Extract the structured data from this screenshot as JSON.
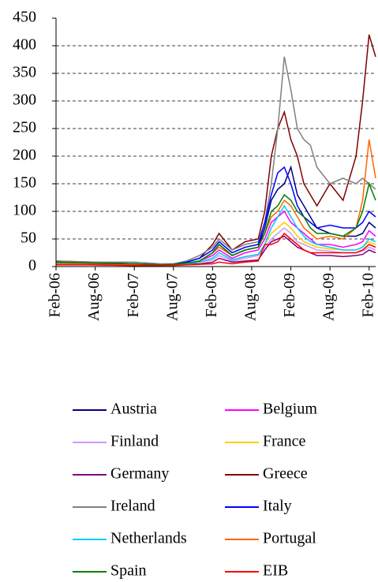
{
  "chart_data": {
    "type": "line",
    "x": [
      "2006-02",
      "2006-08",
      "2007-02",
      "2007-06",
      "2007-08",
      "2007-10",
      "2007-12",
      "2008-02",
      "2008-03",
      "2008-05",
      "2008-07",
      "2008-09",
      "2008-10",
      "2008-11",
      "2008-12",
      "2009-01",
      "2009-02",
      "2009-03",
      "2009-04",
      "2009-05",
      "2009-06",
      "2009-08",
      "2009-10",
      "2009-12",
      "2010-01",
      "2010-02",
      "2010-03"
    ],
    "xlim": [
      "2006-02",
      "2010-03"
    ],
    "xticks": [
      {
        "value": "2006-02",
        "label": "Feb-06"
      },
      {
        "value": "2006-08",
        "label": "Aug-06"
      },
      {
        "value": "2007-02",
        "label": "Feb-07"
      },
      {
        "value": "2007-08",
        "label": "Aug-07"
      },
      {
        "value": "2008-02",
        "label": "Feb-08"
      },
      {
        "value": "2008-08",
        "label": "Aug-08"
      },
      {
        "value": "2009-02",
        "label": "Feb-09"
      },
      {
        "value": "2009-08",
        "label": "Aug-09"
      },
      {
        "value": "2010-02",
        "label": "Feb-10"
      }
    ],
    "ylim": [
      0,
      450
    ],
    "yticks": [
      0,
      50,
      100,
      150,
      200,
      250,
      300,
      350,
      400,
      450
    ],
    "grid": true,
    "series": [
      {
        "name": "Austria",
        "color": "#000080",
        "values": [
          8,
          6,
          5,
          3,
          4,
          6,
          10,
          25,
          40,
          20,
          30,
          35,
          70,
          120,
          140,
          150,
          180,
          130,
          110,
          90,
          70,
          60,
          55,
          55,
          60,
          80,
          70
        ]
      },
      {
        "name": "Belgium",
        "color": "#ff00ff",
        "values": [
          6,
          5,
          4,
          3,
          4,
          6,
          10,
          20,
          30,
          15,
          25,
          30,
          50,
          80,
          90,
          100,
          80,
          70,
          60,
          50,
          40,
          40,
          35,
          40,
          45,
          65,
          55
        ]
      },
      {
        "name": "Finland",
        "color": "#cc99ff",
        "values": [
          5,
          4,
          3,
          2,
          3,
          5,
          8,
          12,
          20,
          10,
          15,
          20,
          35,
          50,
          60,
          70,
          60,
          45,
          40,
          35,
          30,
          28,
          25,
          25,
          28,
          35,
          30
        ]
      },
      {
        "name": "France",
        "color": "#ffcc00",
        "values": [
          5,
          4,
          3,
          2,
          3,
          5,
          8,
          15,
          25,
          12,
          18,
          22,
          40,
          60,
          70,
          80,
          70,
          55,
          45,
          40,
          35,
          32,
          30,
          30,
          35,
          45,
          40
        ]
      },
      {
        "name": "Germany",
        "color": "#800080",
        "values": [
          4,
          3,
          2,
          2,
          3,
          4,
          5,
          8,
          15,
          8,
          10,
          12,
          30,
          45,
          50,
          55,
          45,
          35,
          30,
          25,
          20,
          20,
          18,
          20,
          22,
          30,
          25
        ]
      },
      {
        "name": "Greece",
        "color": "#800000",
        "values": [
          10,
          8,
          5,
          4,
          5,
          8,
          15,
          40,
          60,
          30,
          45,
          50,
          100,
          200,
          250,
          280,
          230,
          200,
          150,
          130,
          110,
          150,
          120,
          200,
          300,
          420,
          380
        ]
      },
      {
        "name": "Ireland",
        "color": "#808080",
        "values": [
          10,
          8,
          8,
          5,
          5,
          10,
          20,
          35,
          50,
          30,
          40,
          45,
          80,
          150,
          250,
          380,
          320,
          250,
          230,
          220,
          180,
          150,
          160,
          150,
          160,
          150,
          140
        ]
      },
      {
        "name": "Italy",
        "color": "#0000ff",
        "values": [
          8,
          6,
          5,
          3,
          4,
          8,
          15,
          30,
          45,
          25,
          35,
          40,
          80,
          130,
          170,
          180,
          150,
          110,
          90,
          80,
          70,
          75,
          70,
          70,
          80,
          100,
          90
        ]
      },
      {
        "name": "Netherlands",
        "color": "#00ccff",
        "values": [
          5,
          4,
          3,
          2,
          3,
          5,
          8,
          15,
          25,
          12,
          18,
          22,
          40,
          70,
          90,
          110,
          90,
          70,
          55,
          45,
          40,
          35,
          30,
          30,
          35,
          50,
          45
        ]
      },
      {
        "name": "Portugal",
        "color": "#ff6600",
        "values": [
          6,
          5,
          4,
          3,
          4,
          6,
          10,
          25,
          35,
          20,
          30,
          35,
          60,
          90,
          100,
          120,
          110,
          90,
          70,
          60,
          50,
          55,
          50,
          70,
          120,
          230,
          160
        ]
      },
      {
        "name": "Spain",
        "color": "#008000",
        "values": [
          8,
          6,
          5,
          3,
          4,
          6,
          10,
          25,
          40,
          20,
          30,
          35,
          60,
          100,
          110,
          130,
          120,
          100,
          90,
          70,
          60,
          60,
          55,
          70,
          100,
          150,
          120
        ]
      },
      {
        "name": "EIB",
        "color": "#ff0000",
        "values": [
          3,
          3,
          2,
          2,
          2,
          3,
          4,
          5,
          8,
          5,
          8,
          10,
          40,
          40,
          45,
          60,
          50,
          40,
          30,
          25,
          25,
          25,
          25,
          25,
          30,
          40,
          35
        ]
      }
    ]
  }
}
